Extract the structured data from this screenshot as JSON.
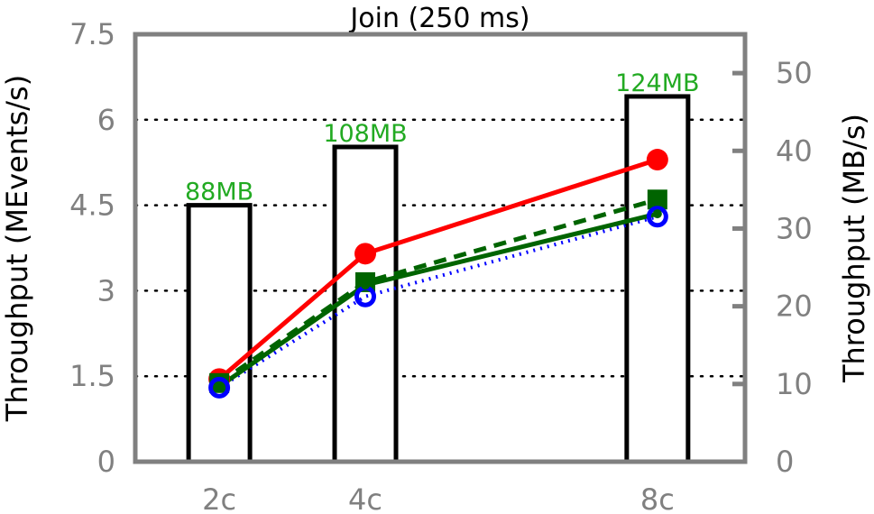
{
  "chart_data": {
    "type": "bar+line",
    "title": "Join (250 ms)",
    "categories": [
      "2c",
      "4c",
      "8c"
    ],
    "x": [
      2,
      4,
      8
    ],
    "xlim": [
      0.85,
      9.2
    ],
    "y_left": {
      "label": "Throughput (MEvents/s)",
      "lim": [
        0,
        7.5
      ],
      "ticks": [
        "0",
        "1.5",
        "3",
        "4.5",
        "6",
        "7.5"
      ],
      "tick_values": [
        0,
        1.5,
        3,
        4.5,
        6,
        7.5
      ]
    },
    "y_right": {
      "label": "Throughput (MB/s)",
      "lim": [
        0,
        55
      ],
      "ticks": [
        "0",
        "10",
        "20",
        "30",
        "40",
        "50"
      ],
      "tick_values": [
        0,
        10,
        20,
        30,
        40,
        50
      ]
    },
    "grid": "horizontal-dotted",
    "bars": {
      "axis": "right",
      "values": [
        33,
        40.5,
        47
      ],
      "labels": [
        "88MB",
        "108MB",
        "124MB"
      ],
      "label_color": "#22aa22",
      "fill": "#ffffff",
      "stroke": "#000000"
    },
    "series": [
      {
        "axis": "left",
        "color": "#ff0000",
        "marker": "filled-circle",
        "line": "solid",
        "values": [
          1.45,
          3.65,
          5.3
        ]
      },
      {
        "axis": "left",
        "color": "#006400",
        "marker": "filled-square",
        "line": "dashed",
        "values": [
          1.38,
          3.15,
          4.6
        ]
      },
      {
        "axis": "left",
        "color": "#0000ff",
        "marker": "open-circle",
        "line": "dotted",
        "values": [
          1.3,
          2.9,
          4.3
        ]
      },
      {
        "axis": "left",
        "color": "#006400",
        "marker": "small-circle",
        "line": "solid",
        "values": [
          1.32,
          3.1,
          4.35
        ]
      }
    ]
  }
}
